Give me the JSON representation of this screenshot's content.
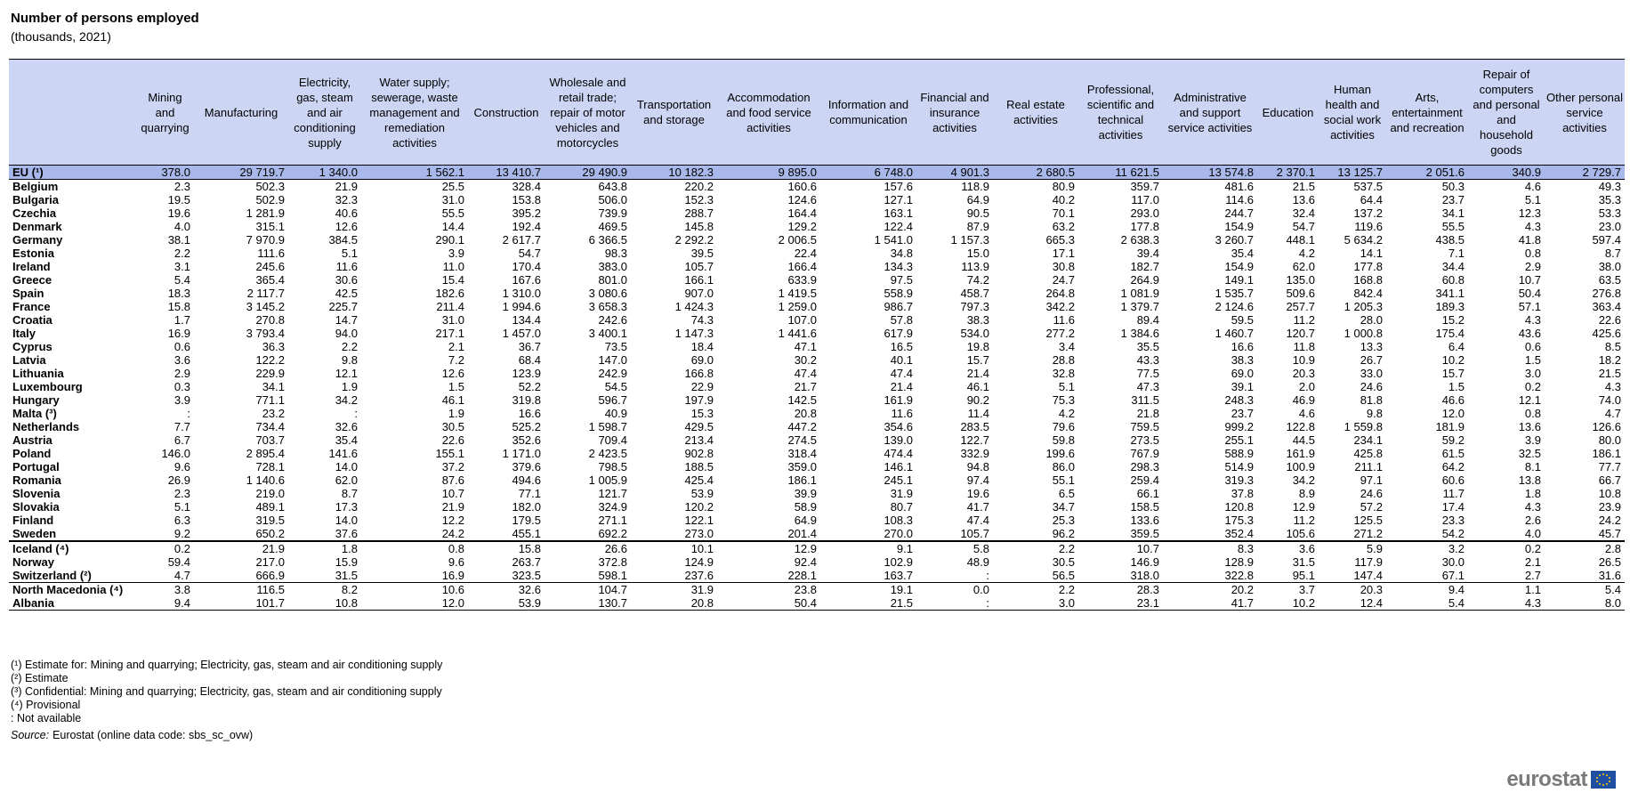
{
  "header": {
    "title": "Number of persons employed",
    "subtitle": "(thousands, 2021)"
  },
  "table": {
    "columns": [
      "",
      "Mining and quarrying",
      "Manufacturing",
      "Electricity, gas, steam and air conditioning supply",
      "Water supply; sewerage, waste management and remediation activities",
      "Construction",
      "Wholesale and retail trade; repair of motor vehicles and motorcycles",
      "Transportation and storage",
      "Accommodation and food service activities",
      "Information and communication",
      "Financial and insurance activities",
      "Real estate activities",
      "Professional, scientific and technical activities",
      "Administrative and support service activities",
      "Education",
      "Human health and social work activities",
      "Arts, entertainment and recreation",
      "Repair of computers and personal and household goods",
      "Other personal service activities"
    ],
    "rows": [
      [
        "EU (¹)",
        "378.0",
        "29 719.7",
        "1 340.0",
        "1 562.1",
        "13 410.7",
        "29 490.9",
        "10 182.3",
        "9 895.0",
        "6 748.0",
        "4 901.3",
        "2 680.5",
        "11 621.5",
        "13 574.8",
        "2 370.1",
        "13 125.7",
        "2 051.6",
        "340.9",
        "2 729.7"
      ],
      [
        "Belgium",
        "2.3",
        "502.3",
        "21.9",
        "25.5",
        "328.4",
        "643.8",
        "220.2",
        "160.6",
        "157.6",
        "118.9",
        "80.9",
        "359.7",
        "481.6",
        "21.5",
        "537.5",
        "50.3",
        "4.6",
        "49.3"
      ],
      [
        "Bulgaria",
        "19.5",
        "502.9",
        "32.3",
        "31.0",
        "153.8",
        "506.0",
        "152.3",
        "124.6",
        "127.1",
        "64.9",
        "40.2",
        "117.0",
        "114.6",
        "13.6",
        "64.4",
        "23.7",
        "5.1",
        "35.3"
      ],
      [
        "Czechia",
        "19.6",
        "1 281.9",
        "40.6",
        "55.5",
        "395.2",
        "739.9",
        "288.7",
        "164.4",
        "163.1",
        "90.5",
        "70.1",
        "293.0",
        "244.7",
        "32.4",
        "137.2",
        "34.1",
        "12.3",
        "53.3"
      ],
      [
        "Denmark",
        "4.0",
        "315.1",
        "12.6",
        "14.4",
        "192.4",
        "469.5",
        "145.8",
        "129.2",
        "122.4",
        "87.9",
        "63.2",
        "177.8",
        "154.9",
        "54.7",
        "119.6",
        "55.5",
        "4.3",
        "23.0"
      ],
      [
        "Germany",
        "38.1",
        "7 970.9",
        "384.5",
        "290.1",
        "2 617.7",
        "6 366.5",
        "2 292.2",
        "2 006.5",
        "1 541.0",
        "1 157.3",
        "665.3",
        "2 638.3",
        "3 260.7",
        "448.1",
        "5 634.2",
        "438.5",
        "41.8",
        "597.4"
      ],
      [
        "Estonia",
        "2.2",
        "111.6",
        "5.1",
        "3.9",
        "54.7",
        "98.3",
        "39.5",
        "22.4",
        "34.8",
        "15.0",
        "17.1",
        "39.4",
        "35.4",
        "4.2",
        "14.1",
        "7.1",
        "0.8",
        "8.7"
      ],
      [
        "Ireland",
        "3.1",
        "245.6",
        "11.6",
        "11.0",
        "170.4",
        "383.0",
        "105.7",
        "166.4",
        "134.3",
        "113.9",
        "30.8",
        "182.7",
        "154.9",
        "62.0",
        "177.8",
        "34.4",
        "2.9",
        "38.0"
      ],
      [
        "Greece",
        "5.4",
        "365.4",
        "30.6",
        "15.4",
        "167.6",
        "801.0",
        "166.1",
        "633.9",
        "97.5",
        "74.2",
        "24.7",
        "264.9",
        "149.1",
        "135.0",
        "168.8",
        "60.8",
        "10.7",
        "63.5"
      ],
      [
        "Spain",
        "18.3",
        "2 117.7",
        "42.5",
        "182.6",
        "1 310.0",
        "3 080.6",
        "907.0",
        "1 419.5",
        "558.9",
        "458.7",
        "264.8",
        "1 081.9",
        "1 535.7",
        "509.6",
        "842.4",
        "341.1",
        "50.4",
        "276.8"
      ],
      [
        "France",
        "15.8",
        "3 145.2",
        "225.7",
        "211.4",
        "1 994.6",
        "3 658.3",
        "1 424.3",
        "1 259.0",
        "986.7",
        "797.3",
        "342.2",
        "1 379.7",
        "2 124.6",
        "257.7",
        "1 205.3",
        "189.3",
        "57.1",
        "363.4"
      ],
      [
        "Croatia",
        "1.7",
        "270.8",
        "14.7",
        "31.0",
        "134.4",
        "242.6",
        "74.3",
        "107.0",
        "57.8",
        "38.3",
        "11.6",
        "89.4",
        "59.5",
        "11.2",
        "28.0",
        "15.2",
        "4.3",
        "22.6"
      ],
      [
        "Italy",
        "16.9",
        "3 793.4",
        "94.0",
        "217.1",
        "1 457.0",
        "3 400.1",
        "1 147.3",
        "1 441.6",
        "617.9",
        "534.0",
        "277.2",
        "1 384.6",
        "1 460.7",
        "120.7",
        "1 000.8",
        "175.4",
        "43.6",
        "425.6"
      ],
      [
        "Cyprus",
        "0.6",
        "36.3",
        "2.2",
        "2.1",
        "36.7",
        "73.5",
        "18.4",
        "47.1",
        "16.5",
        "19.8",
        "3.4",
        "35.5",
        "16.6",
        "11.8",
        "13.3",
        "6.4",
        "0.6",
        "8.5"
      ],
      [
        "Latvia",
        "3.6",
        "122.2",
        "9.8",
        "7.2",
        "68.4",
        "147.0",
        "69.0",
        "30.2",
        "40.1",
        "15.7",
        "28.8",
        "43.3",
        "38.3",
        "10.9",
        "26.7",
        "10.2",
        "1.5",
        "18.2"
      ],
      [
        "Lithuania",
        "2.9",
        "229.9",
        "12.1",
        "12.6",
        "123.9",
        "242.9",
        "166.8",
        "47.4",
        "47.4",
        "21.4",
        "32.8",
        "77.5",
        "69.0",
        "20.3",
        "33.0",
        "15.7",
        "3.0",
        "21.5"
      ],
      [
        "Luxembourg",
        "0.3",
        "34.1",
        "1.9",
        "1.5",
        "52.2",
        "54.5",
        "22.9",
        "21.7",
        "21.4",
        "46.1",
        "5.1",
        "47.3",
        "39.1",
        "2.0",
        "24.6",
        "1.5",
        "0.2",
        "4.3"
      ],
      [
        "Hungary",
        "3.9",
        "771.1",
        "34.2",
        "46.1",
        "319.8",
        "596.7",
        "197.9",
        "142.5",
        "161.9",
        "90.2",
        "75.3",
        "311.5",
        "248.3",
        "46.9",
        "81.8",
        "46.6",
        "12.1",
        "74.0"
      ],
      [
        "Malta (³)",
        ":",
        "23.2",
        ":",
        "1.9",
        "16.6",
        "40.9",
        "15.3",
        "20.8",
        "11.6",
        "11.4",
        "4.2",
        "21.8",
        "23.7",
        "4.6",
        "9.8",
        "12.0",
        "0.8",
        "4.7"
      ],
      [
        "Netherlands",
        "7.7",
        "734.4",
        "32.6",
        "30.5",
        "525.2",
        "1 598.7",
        "429.5",
        "447.2",
        "354.6",
        "283.5",
        "79.6",
        "759.5",
        "999.2",
        "122.8",
        "1 559.8",
        "181.9",
        "13.6",
        "126.6"
      ],
      [
        "Austria",
        "6.7",
        "703.7",
        "35.4",
        "22.6",
        "352.6",
        "709.4",
        "213.4",
        "274.5",
        "139.0",
        "122.7",
        "59.8",
        "273.5",
        "255.1",
        "44.5",
        "234.1",
        "59.2",
        "3.9",
        "80.0"
      ],
      [
        "Poland",
        "146.0",
        "2 895.4",
        "141.6",
        "155.1",
        "1 171.0",
        "2 423.5",
        "902.8",
        "318.4",
        "474.4",
        "332.9",
        "199.6",
        "767.9",
        "588.9",
        "161.9",
        "425.8",
        "61.5",
        "32.5",
        "186.1"
      ],
      [
        "Portugal",
        "9.6",
        "728.1",
        "14.0",
        "37.2",
        "379.6",
        "798.5",
        "188.5",
        "359.0",
        "146.1",
        "94.8",
        "86.0",
        "298.3",
        "514.9",
        "100.9",
        "211.1",
        "64.2",
        "8.1",
        "77.7"
      ],
      [
        "Romania",
        "26.9",
        "1 140.6",
        "62.0",
        "87.6",
        "494.6",
        "1 005.9",
        "425.4",
        "186.1",
        "245.1",
        "97.4",
        "55.1",
        "259.4",
        "319.3",
        "34.2",
        "97.1",
        "60.6",
        "13.8",
        "66.7"
      ],
      [
        "Slovenia",
        "2.3",
        "219.0",
        "8.7",
        "10.7",
        "77.1",
        "121.7",
        "53.9",
        "39.9",
        "31.9",
        "19.6",
        "6.5",
        "66.1",
        "37.8",
        "8.9",
        "24.6",
        "11.7",
        "1.8",
        "10.8"
      ],
      [
        "Slovakia",
        "5.1",
        "489.1",
        "17.3",
        "21.9",
        "182.0",
        "324.9",
        "120.2",
        "58.9",
        "80.7",
        "41.7",
        "34.7",
        "158.5",
        "120.8",
        "12.9",
        "57.2",
        "17.4",
        "4.3",
        "23.9"
      ],
      [
        "Finland",
        "6.3",
        "319.5",
        "14.0",
        "12.2",
        "179.5",
        "271.1",
        "122.1",
        "64.9",
        "108.3",
        "47.4",
        "25.3",
        "133.6",
        "175.3",
        "11.2",
        "125.5",
        "23.3",
        "2.6",
        "24.2"
      ],
      [
        "Sweden",
        "9.2",
        "650.2",
        "37.6",
        "24.2",
        "455.1",
        "692.2",
        "273.0",
        "201.4",
        "270.0",
        "105.7",
        "96.2",
        "359.5",
        "352.4",
        "105.6",
        "271.2",
        "54.2",
        "4.0",
        "45.7"
      ],
      [
        "Iceland (⁴)",
        "0.2",
        "21.9",
        "1.8",
        "0.8",
        "15.8",
        "26.6",
        "10.1",
        "12.9",
        "9.1",
        "5.8",
        "2.2",
        "10.7",
        "8.3",
        "3.6",
        "5.9",
        "3.2",
        "0.2",
        "2.8"
      ],
      [
        "Norway",
        "59.4",
        "217.0",
        "15.9",
        "9.6",
        "263.7",
        "372.8",
        "124.9",
        "92.4",
        "102.9",
        "48.9",
        "30.5",
        "146.9",
        "128.9",
        "31.5",
        "117.9",
        "30.0",
        "2.1",
        "26.5"
      ],
      [
        "Switzerland (²)",
        "4.7",
        "666.9",
        "31.5",
        "16.9",
        "323.5",
        "598.1",
        "237.6",
        "228.1",
        "163.7",
        ":",
        "56.5",
        "318.0",
        "322.8",
        "95.1",
        "147.4",
        "67.1",
        "2.7",
        "31.6"
      ],
      [
        "North Macedonia (⁴)",
        "3.8",
        "116.5",
        "8.2",
        "10.6",
        "32.6",
        "104.7",
        "31.9",
        "23.8",
        "19.1",
        "0.0",
        "2.2",
        "28.3",
        "20.2",
        "3.7",
        "20.3",
        "9.4",
        "1.1",
        "5.4"
      ],
      [
        "Albania",
        "9.4",
        "101.7",
        "10.8",
        "12.0",
        "53.9",
        "130.7",
        "20.8",
        "50.4",
        "21.5",
        ":",
        "3.0",
        "23.1",
        "41.7",
        "10.2",
        "12.4",
        "5.4",
        "4.3",
        "8.0"
      ]
    ]
  },
  "footnotes": [
    "(¹) Estimate for: Mining and quarrying; Electricity, gas, steam and air conditioning supply",
    "(²) Estimate",
    "(³) Confidential: Mining and quarrying; Electricity, gas, steam and air conditioning supply",
    "(⁴) Provisional",
    ":  Not available"
  ],
  "source": {
    "label": "Source:",
    "text": "Eurostat (online data code: sbs_sc_ovw)"
  },
  "logo": "eurostat"
}
